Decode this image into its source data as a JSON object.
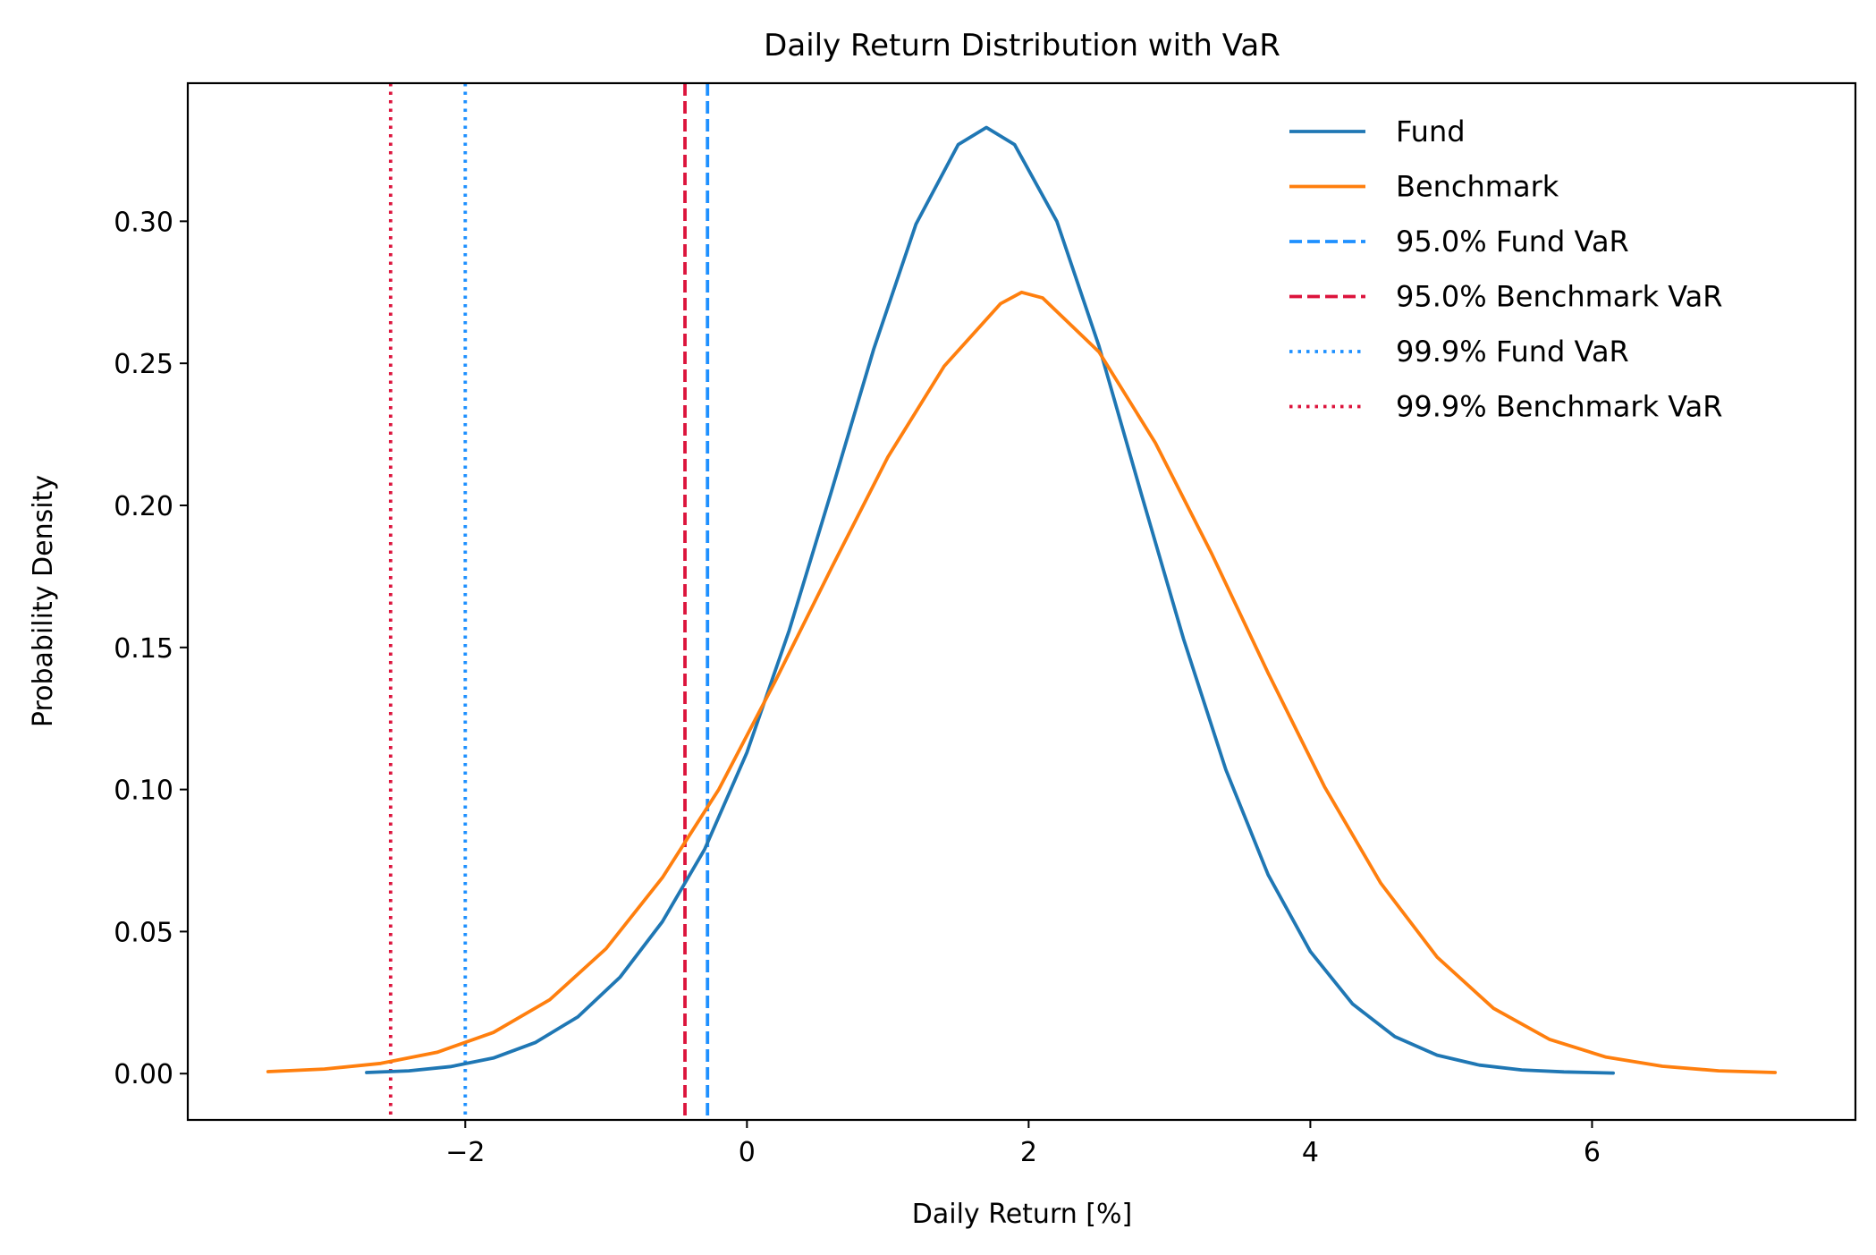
{
  "chart_data": {
    "type": "line",
    "title": "Daily Return Distribution with VaR",
    "xlabel": "Daily Return [%]",
    "ylabel": "Probability Density",
    "xlim": [
      -3.97,
      7.87
    ],
    "ylim": [
      -0.0163,
      0.3486
    ],
    "xticks": [
      -2,
      0,
      2,
      4,
      6
    ],
    "xtick_labels": [
      "−2",
      "0",
      "2",
      "4",
      "6"
    ],
    "yticks": [
      0.0,
      0.05,
      0.1,
      0.15,
      0.2,
      0.25,
      0.3
    ],
    "ytick_labels": [
      "0.00",
      "0.05",
      "0.10",
      "0.15",
      "0.20",
      "0.25",
      "0.30"
    ],
    "grid": false,
    "legend_position": "top-right",
    "series": [
      {
        "name": "Fund",
        "color": "#1f77b4",
        "style": "solid",
        "x": [
          -2.7,
          -2.4,
          -2.1,
          -1.8,
          -1.5,
          -1.2,
          -0.9,
          -0.6,
          -0.3,
          0.0,
          0.3,
          0.6,
          0.9,
          1.2,
          1.5,
          1.7,
          1.9,
          2.2,
          2.5,
          2.8,
          3.1,
          3.4,
          3.7,
          4.0,
          4.3,
          4.6,
          4.9,
          5.2,
          5.5,
          5.8,
          6.15
        ],
        "y": [
          0.0004,
          0.001,
          0.0025,
          0.0055,
          0.011,
          0.02,
          0.034,
          0.0535,
          0.079,
          0.113,
          0.156,
          0.205,
          0.255,
          0.299,
          0.327,
          0.333,
          0.327,
          0.3,
          0.256,
          0.204,
          0.153,
          0.107,
          0.07,
          0.043,
          0.0245,
          0.013,
          0.0065,
          0.003,
          0.0013,
          0.0006,
          0.0002
        ]
      },
      {
        "name": "Benchmark",
        "color": "#ff7f0e",
        "style": "solid",
        "x": [
          -3.4,
          -3.0,
          -2.6,
          -2.2,
          -1.8,
          -1.4,
          -1.0,
          -0.6,
          -0.2,
          0.2,
          0.6,
          1.0,
          1.4,
          1.8,
          1.95,
          2.1,
          2.5,
          2.9,
          3.3,
          3.7,
          4.1,
          4.5,
          4.9,
          5.3,
          5.7,
          6.1,
          6.5,
          6.9,
          7.3
        ],
        "y": [
          0.0007,
          0.0016,
          0.0036,
          0.0075,
          0.0145,
          0.026,
          0.044,
          0.069,
          0.1,
          0.138,
          0.178,
          0.217,
          0.249,
          0.271,
          0.275,
          0.273,
          0.254,
          0.222,
          0.183,
          0.141,
          0.101,
          0.067,
          0.041,
          0.023,
          0.012,
          0.0058,
          0.0026,
          0.001,
          0.0004
        ]
      }
    ],
    "vlines": [
      {
        "name": "95.0% Fund VaR",
        "x": -0.28,
        "color": "#1e90ff",
        "style": "dashed"
      },
      {
        "name": "95.0% Benchmark VaR",
        "x": -0.44,
        "color": "#dc143c",
        "style": "dashed"
      },
      {
        "name": "99.9% Fund VaR",
        "x": -2.0,
        "color": "#1e90ff",
        "style": "dotted"
      },
      {
        "name": "99.9% Benchmark VaR",
        "x": -2.53,
        "color": "#dc143c",
        "style": "dotted"
      }
    ]
  }
}
